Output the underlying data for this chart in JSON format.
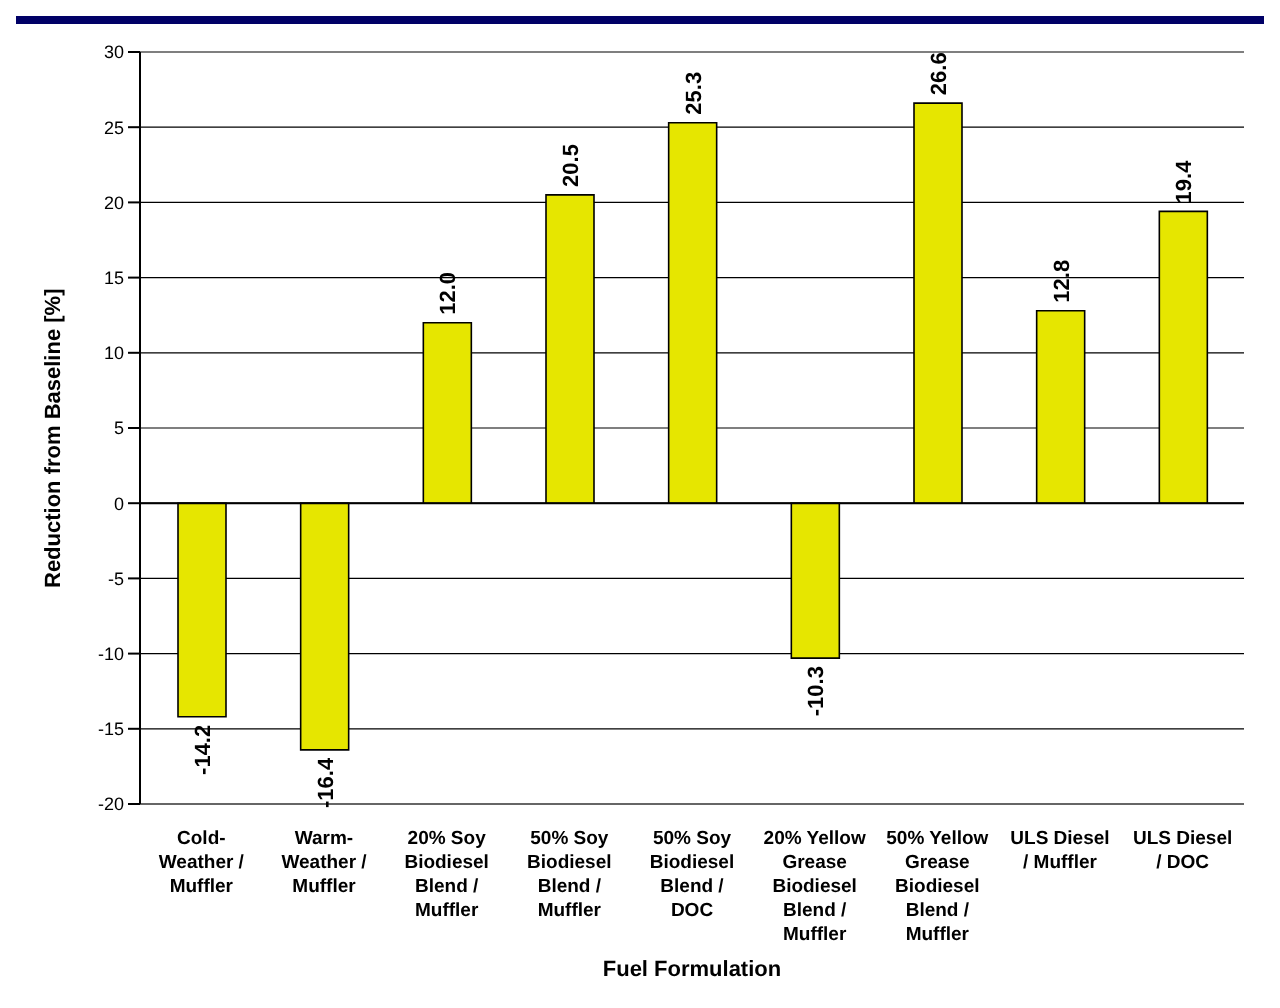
{
  "chart_data": {
    "type": "bar",
    "xlabel": "Fuel Formulation",
    "ylabel": "Reduction from Baseline [%]",
    "categories": [
      "Cold-Weather / Muffler",
      "Warm-Weather / Muffler",
      "20% Soy Biodiesel Blend / Muffler",
      "50% Soy Biodiesel Blend / Muffler",
      "50% Soy Biodiesel Blend / DOC",
      "20% Yellow Grease Biodiesel Blend / Muffler",
      "50% Yellow Grease Biodiesel Blend / Muffler",
      "ULS Diesel / Muffler",
      "ULS Diesel / DOC"
    ],
    "values": [
      -14.2,
      -16.4,
      12.0,
      20.5,
      25.3,
      -10.3,
      26.6,
      12.8,
      19.4
    ],
    "value_labels": [
      "-14.2",
      "-16.4",
      "12.0",
      "20.5",
      "25.3",
      "-10.3",
      "26.6",
      "12.8",
      "19.4"
    ],
    "color": "#e6e600",
    "ylim": [
      -20,
      30
    ],
    "yticks": [
      -20,
      -15,
      -10,
      -5,
      0,
      5,
      10,
      15,
      20,
      25,
      30
    ],
    "grid": "y"
  }
}
